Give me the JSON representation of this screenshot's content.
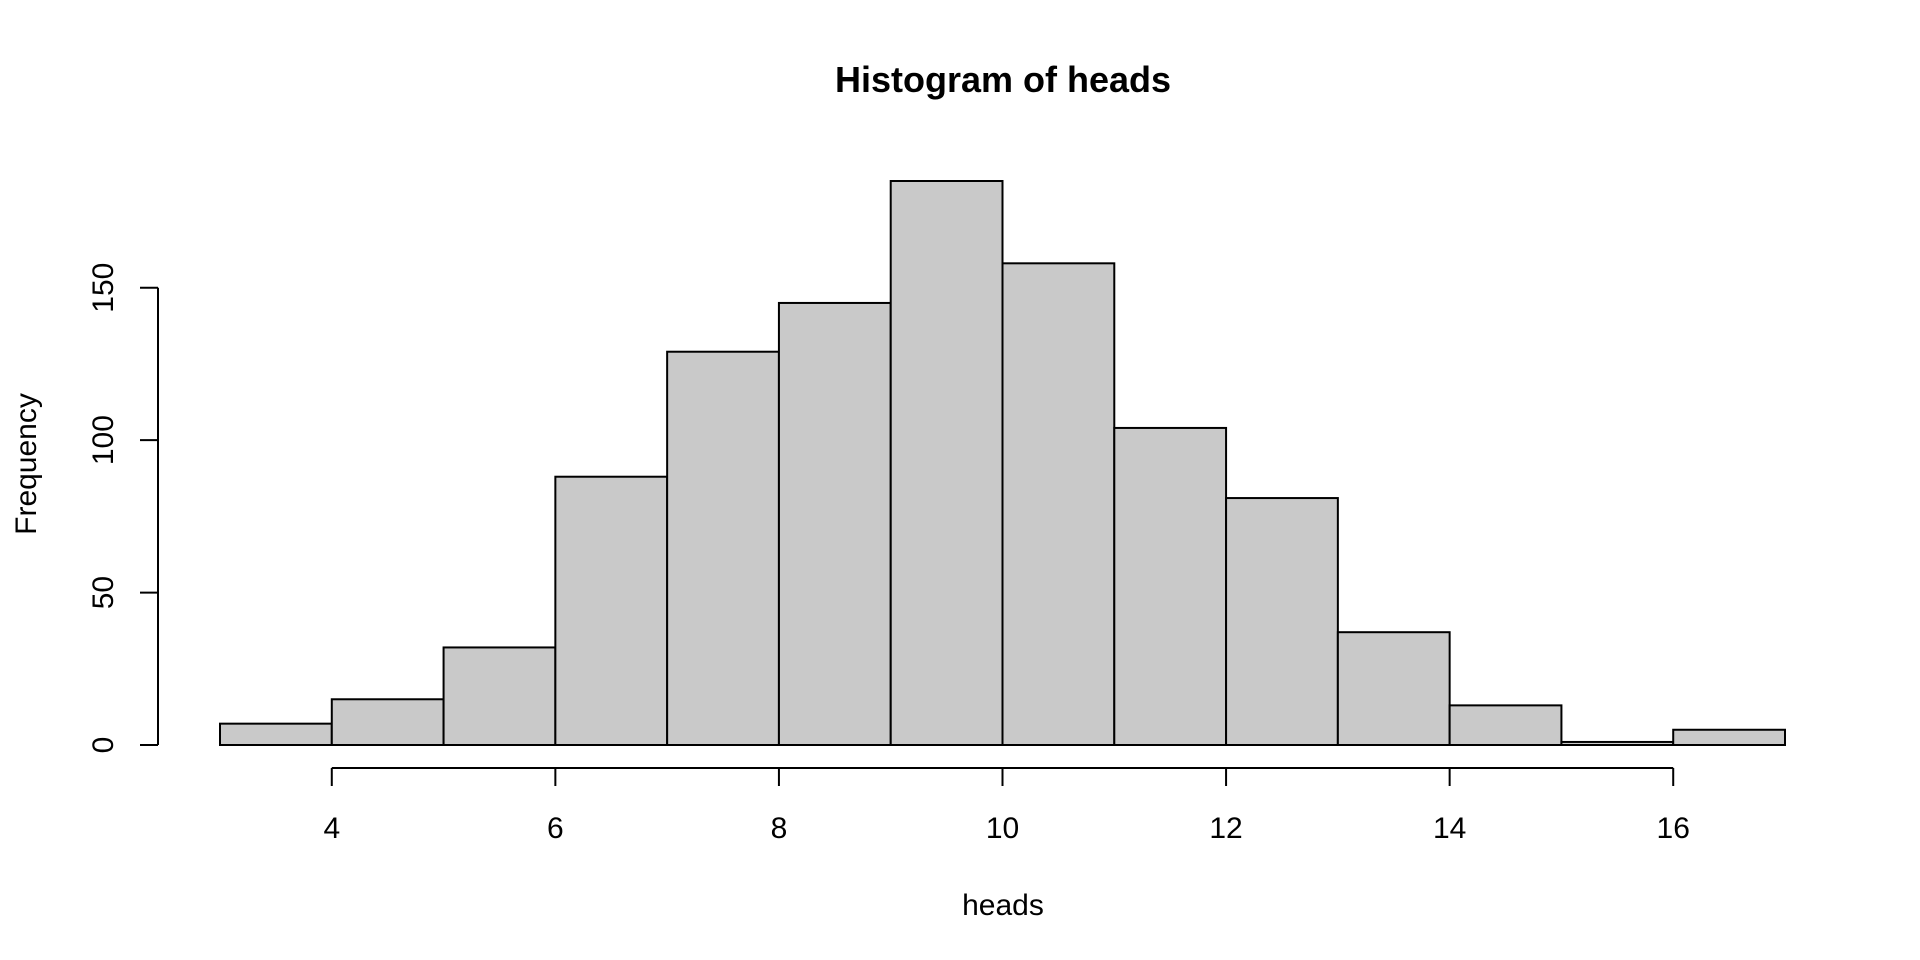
{
  "chart_data": {
    "type": "bar",
    "histogram": true,
    "title": "Histogram of heads",
    "xlabel": "heads",
    "ylabel": "Frequency",
    "bin_edges": [
      3,
      4,
      5,
      6,
      7,
      8,
      9,
      10,
      11,
      12,
      13,
      14,
      15,
      16,
      17
    ],
    "values": [
      7,
      15,
      32,
      88,
      129,
      145,
      185,
      158,
      104,
      81,
      37,
      13,
      1,
      5
    ],
    "x_ticks": [
      4,
      6,
      8,
      10,
      12,
      14,
      16
    ],
    "x_tick_labels": [
      "4",
      "6",
      "8",
      "10",
      "12",
      "14",
      "16"
    ],
    "y_ticks": [
      0,
      50,
      100,
      150
    ],
    "y_tick_labels": [
      "0",
      "50",
      "100",
      "150"
    ],
    "xlim": [
      3,
      17
    ],
    "ylim": [
      0,
      185
    ],
    "grid": false,
    "legend": "none",
    "bar_fill": "#c9c9c9",
    "bar_stroke": "#000000"
  }
}
